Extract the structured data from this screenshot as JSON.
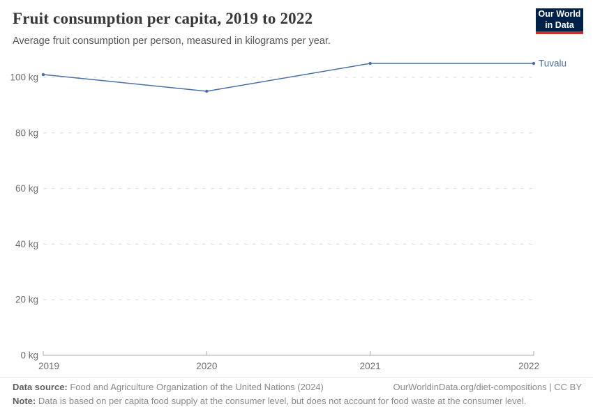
{
  "header": {
    "title": "Fruit consumption per capita, 2019 to 2022",
    "subtitle": "Average fruit consumption per person, measured in kilograms per year.",
    "logo": {
      "line1": "Our World",
      "line2": "in Data"
    }
  },
  "chart_data": {
    "type": "line",
    "title": "Fruit consumption per capita, 2019 to 2022",
    "subtitle": "Average fruit consumption per person, measured in kilograms per year.",
    "x": [
      2019,
      2020,
      2021,
      2022
    ],
    "xtick_labels": [
      "2019",
      "2020",
      "2021",
      "2022"
    ],
    "series": [
      {
        "name": "Tuvalu",
        "values": [
          101,
          95,
          105,
          105
        ],
        "color": "#4C6EA3"
      }
    ],
    "ylim": [
      0,
      106
    ],
    "yticks": [
      0,
      20,
      40,
      60,
      80,
      100
    ],
    "ytick_labels": [
      "0 kg",
      "20 kg",
      "40 kg",
      "60 kg",
      "80 kg",
      "100 kg"
    ],
    "unit": "kg",
    "grid": "horizontal-dashed",
    "legend": "line-end-label"
  },
  "footer": {
    "source_label": "Data source:",
    "source_text": " Food and Agriculture Organization of the United Nations (2024)",
    "link_text": "OurWorldinData.org/diet-compositions | CC BY",
    "note_label": "Note:",
    "note_text": " Data is based on per capita food supply at the consumer level, but does not account for food waste at the consumer level."
  },
  "colors": {
    "line": "#4C6EA3",
    "logo_bg": "#002147",
    "logo_accent": "#C5332B",
    "grid": "#dcdcdc",
    "axis": "#a8a8a8",
    "tick_text": "#6e6e6e"
  }
}
